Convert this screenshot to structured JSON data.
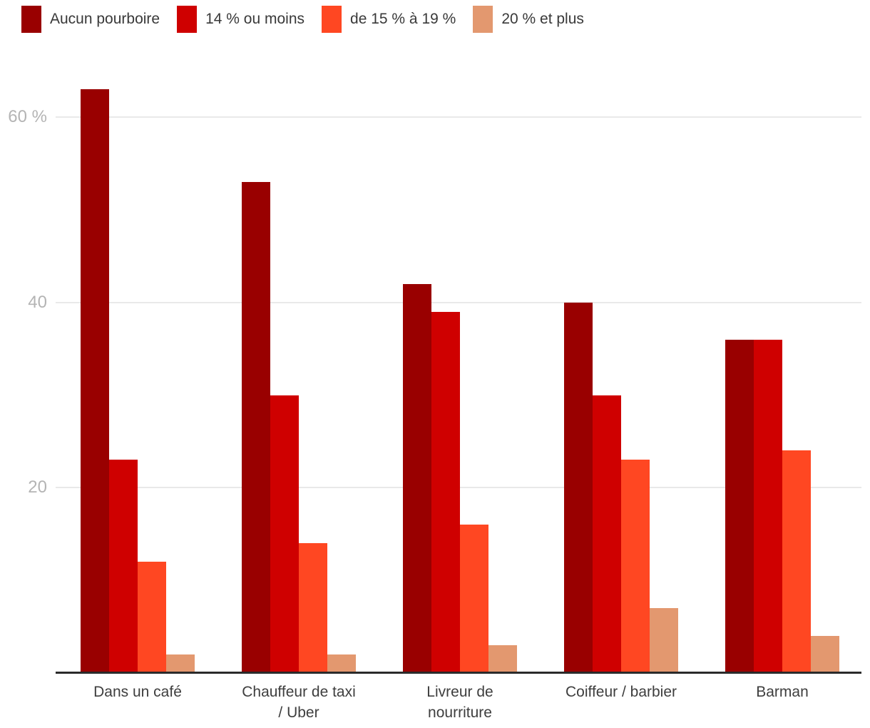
{
  "chart_data": {
    "type": "bar",
    "variant": "grouped-vertical",
    "title": "",
    "xlabel": "",
    "ylabel": "",
    "categories": [
      "Dans un café",
      "Chauffeur de taxi / Uber",
      "Livreur de nourriture",
      "Coiffeur / barbier",
      "Barman"
    ],
    "category_lines": [
      [
        "Dans un café"
      ],
      [
        "Chauffeur de taxi",
        "/ Uber"
      ],
      [
        "Livreur de",
        "nourriture"
      ],
      [
        "Coiffeur / barbier"
      ],
      [
        "Barman"
      ]
    ],
    "series": [
      {
        "name": "Aucun pourboire",
        "color": "#990000",
        "values": [
          63,
          53,
          42,
          40,
          36
        ]
      },
      {
        "name": "14 % ou moins",
        "color": "#cf0000",
        "values": [
          23,
          30,
          39,
          30,
          36
        ]
      },
      {
        "name": "de 15 % à 19 %",
        "color": "#ff4722",
        "values": [
          12,
          14,
          16,
          23,
          24
        ]
      },
      {
        "name": "20 % et plus",
        "color": "#e3986f",
        "values": [
          2,
          2,
          3,
          7,
          4
        ]
      }
    ],
    "unit": "%",
    "ylim": [
      0,
      67.6
    ],
    "y_ticks": [
      {
        "value": 20,
        "label": "20"
      },
      {
        "value": 40,
        "label": "40"
      },
      {
        "value": 60,
        "label": "60 %"
      }
    ],
    "grid": "horizontal",
    "legend_position": "top-left",
    "colors": {
      "axis_tick_text": "#b4b4b4",
      "category_text": "#3e3e3e",
      "gridline": "#e9e9e9",
      "baseline": "#2b2b2b",
      "background": "#ffffff"
    }
  }
}
